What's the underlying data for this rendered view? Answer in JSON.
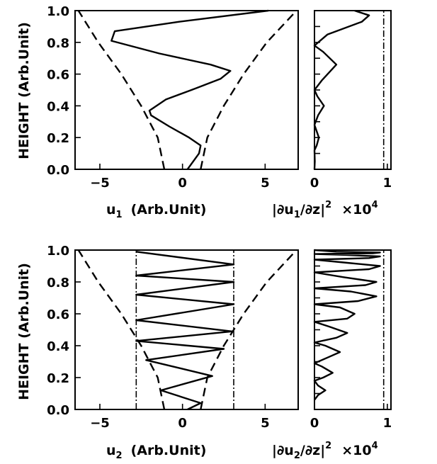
{
  "chart_data": [
    {
      "type": "line",
      "panel": "top-left",
      "xlabel": "u1 (Arb.Unit)",
      "xlabel_parts": {
        "var": "u",
        "sub": "1",
        "rest": "(Arb.Unit)"
      },
      "ylabel": "HEIGHT (Arb.Unit)",
      "xlim": [
        -6.5,
        7.0
      ],
      "ylim": [
        0.0,
        1.0
      ],
      "xticks": [
        "-5",
        "0",
        "5"
      ],
      "xtick_values": [
        -5,
        0,
        5
      ],
      "yticks": [
        "0.0",
        "0.2",
        "0.4",
        "0.6",
        "0.8",
        "1.0"
      ],
      "ytick_values": [
        0,
        0.2,
        0.4,
        0.6,
        0.8,
        1.0
      ],
      "series": [
        {
          "style": "solid",
          "x": [
            0.3,
            1.0,
            1.1,
            0.4,
            -0.8,
            -1.9,
            -2.0,
            -1.0,
            0.8,
            2.3,
            2.9,
            1.7,
            -1.4,
            -4.3,
            -4.1,
            -0.2,
            5.2
          ],
          "y": [
            0.0,
            0.1,
            0.15,
            0.2,
            0.27,
            0.34,
            0.37,
            0.44,
            0.51,
            0.57,
            0.62,
            0.66,
            0.73,
            0.81,
            0.87,
            0.93,
            1.0
          ]
        },
        {
          "style": "dashed",
          "x": [
            1.1,
            1.5,
            2.5,
            3.7,
            5.1,
            6.9
          ],
          "y": [
            0.0,
            0.2,
            0.4,
            0.6,
            0.8,
            1.0
          ]
        },
        {
          "style": "dashed",
          "x": [
            -1.1,
            -1.5,
            -2.5,
            -3.7,
            -5.1,
            -6.3
          ],
          "y": [
            0.0,
            0.2,
            0.4,
            0.6,
            0.8,
            1.0
          ]
        }
      ]
    },
    {
      "type": "line",
      "panel": "top-right",
      "xlabel": "|∂u1/∂z|2 ×104",
      "xlabel_parts": {
        "bar": "|",
        "d": "∂u",
        "sub": "1",
        "rest": "/∂z|",
        "sup": "2",
        "mult": "×10",
        "exp": "4"
      },
      "xlim": [
        0,
        1.05
      ],
      "ylim": [
        0.0,
        1.0
      ],
      "xticks": [
        "0",
        "1"
      ],
      "xtick_values": [
        0,
        1
      ],
      "ytick_values": [
        0,
        0.1,
        0.2,
        0.3,
        0.4,
        0.5,
        0.6,
        0.7,
        0.8,
        0.9,
        1.0
      ],
      "vline_x": 0.95,
      "series": [
        {
          "style": "solid",
          "x": [
            0.0,
            0.005,
            0.0,
            0.03,
            0.06,
            0.0,
            0.05,
            0.13,
            0.04,
            0.0,
            0.1,
            0.3,
            0.12,
            0.0,
            0.18,
            0.65,
            0.75,
            0.55
          ],
          "y": [
            0.0,
            0.05,
            0.12,
            0.15,
            0.2,
            0.28,
            0.34,
            0.4,
            0.46,
            0.5,
            0.56,
            0.66,
            0.74,
            0.78,
            0.85,
            0.93,
            0.97,
            1.0
          ]
        }
      ]
    },
    {
      "type": "line",
      "panel": "bottom-left",
      "xlabel": "u2 (Arb.Unit)",
      "xlabel_parts": {
        "var": "u",
        "sub": "2",
        "rest": "(Arb.Unit)"
      },
      "ylabel": "HEIGHT (Arb.Unit)",
      "xlim": [
        -6.5,
        7.0
      ],
      "ylim": [
        0.0,
        1.0
      ],
      "xticks": [
        "-5",
        "0",
        "5"
      ],
      "xtick_values": [
        -5,
        0,
        5
      ],
      "yticks": [
        "0.0",
        "0.2",
        "0.4",
        "0.6",
        "0.8",
        "1.0"
      ],
      "ytick_values": [
        0,
        0.2,
        0.4,
        0.6,
        0.8,
        1.0
      ],
      "vline_x": [
        -2.8,
        3.1
      ],
      "series": [
        {
          "style": "solid",
          "x": [
            0.3,
            1.1,
            -1.3,
            1.8,
            -2.2,
            2.5,
            -2.8,
            3.0,
            -2.8,
            3.1,
            -2.8,
            3.1,
            -2.8,
            3.1,
            -2.8
          ],
          "y": [
            0.0,
            0.04,
            0.12,
            0.21,
            0.31,
            0.38,
            0.43,
            0.49,
            0.56,
            0.66,
            0.72,
            0.8,
            0.84,
            0.91,
            0.99
          ]
        },
        {
          "style": "dashed",
          "x": [
            1.1,
            1.5,
            2.5,
            3.7,
            5.1,
            6.9
          ],
          "y": [
            0.0,
            0.2,
            0.4,
            0.6,
            0.8,
            1.0
          ]
        },
        {
          "style": "dashed",
          "x": [
            -1.1,
            -1.5,
            -2.5,
            -3.7,
            -5.1,
            -6.3
          ],
          "y": [
            0.0,
            0.2,
            0.4,
            0.6,
            0.8,
            1.0
          ]
        }
      ]
    },
    {
      "type": "line",
      "panel": "bottom-right",
      "xlabel": "|∂u2/∂z|2 ×104",
      "xlabel_parts": {
        "bar": "|",
        "d": "∂u",
        "sub": "2",
        "rest": "/∂z|",
        "sup": "2",
        "mult": "×10",
        "exp": "4"
      },
      "xlim": [
        0,
        1.05
      ],
      "ylim": [
        0.0,
        1.0
      ],
      "xticks": [
        "0",
        "1"
      ],
      "xtick_values": [
        0,
        1
      ],
      "ytick_values": [
        0,
        0.1,
        0.2,
        0.3,
        0.4,
        0.5,
        0.6,
        0.7,
        0.8,
        0.9,
        1.0
      ],
      "vline_x": 0.95,
      "series": [
        {
          "style": "solid",
          "x": [
            0.0,
            0.05,
            0.15,
            0.05,
            0.0,
            0.12,
            0.25,
            0.1,
            0.0,
            0.2,
            0.35,
            0.15,
            0.0,
            0.3,
            0.45,
            0.2,
            0.0,
            0.45,
            0.55,
            0.35,
            0.0,
            0.6,
            0.85,
            0.5,
            0.0,
            0.7,
            0.85,
            0.4,
            0.0,
            0.75,
            0.9,
            0.45,
            0.0,
            0.75,
            0.9,
            0.4,
            0.0,
            0.8,
            0.9,
            0.3,
            0.0
          ],
          "y": [
            0.06,
            0.09,
            0.12,
            0.15,
            0.18,
            0.2,
            0.23,
            0.27,
            0.29,
            0.33,
            0.36,
            0.4,
            0.42,
            0.45,
            0.48,
            0.52,
            0.55,
            0.57,
            0.6,
            0.64,
            0.66,
            0.68,
            0.71,
            0.74,
            0.76,
            0.78,
            0.8,
            0.83,
            0.86,
            0.88,
            0.9,
            0.92,
            0.94,
            0.95,
            0.96,
            0.97,
            0.975,
            0.98,
            0.985,
            0.99,
            1.0
          ]
        }
      ]
    }
  ]
}
